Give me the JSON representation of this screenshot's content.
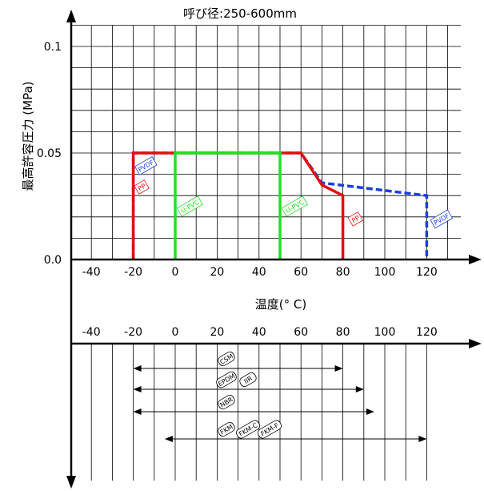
{
  "chart_data": [
    {
      "type": "line",
      "title": "呼び径:250-600mm",
      "xlabel": "温度(° C)",
      "ylabel": "最高許容圧力 (MPa)",
      "x_ticks": [
        -40,
        -20,
        0,
        20,
        40,
        60,
        80,
        100,
        120
      ],
      "y_ticks": [
        {
          "value": 0.1,
          "label": "0.1"
        },
        {
          "value": 0.05,
          "label": "0.05"
        },
        {
          "value": 0.0,
          "label": "0.0"
        }
      ],
      "xlim": [
        -50,
        130
      ],
      "ylim": [
        0,
        0.11
      ],
      "grid": true,
      "series": [
        {
          "name": "PVDF",
          "color": "#1a3fe0",
          "dash": "dashed",
          "x": [
            -20,
            -20,
            60,
            70,
            120,
            120
          ],
          "y": [
            0.0,
            0.05,
            0.05,
            0.036,
            0.03,
            0.0
          ]
        },
        {
          "name": "PP",
          "color": "#e01010",
          "dash": "solid",
          "x": [
            -20,
            -20,
            60,
            70,
            80,
            80
          ],
          "y": [
            0.0,
            0.05,
            0.05,
            0.035,
            0.03,
            0.0
          ]
        },
        {
          "name": "U-PVC",
          "color": "#22e022",
          "dash": "solid",
          "x": [
            0,
            0,
            50,
            50
          ],
          "y": [
            0.0,
            0.05,
            0.05,
            0.0
          ]
        }
      ],
      "tags": [
        {
          "text": "PVDF",
          "x": -14,
          "y": 0.044,
          "color": "#1a3fe0"
        },
        {
          "text": "PP",
          "x": -16,
          "y": 0.034,
          "color": "#e01010"
        },
        {
          "text": "U-PVC",
          "x": 7,
          "y": 0.025,
          "color": "#22e022"
        },
        {
          "text": "U-PVC",
          "x": 57,
          "y": 0.025,
          "color": "#22e022"
        },
        {
          "text": "PP",
          "x": 86,
          "y": 0.019,
          "color": "#e01010"
        },
        {
          "text": "PVDF",
          "x": 127,
          "y": 0.019,
          "color": "#1a3fe0"
        }
      ]
    },
    {
      "type": "range",
      "x_ticks": [
        -40,
        -20,
        0,
        20,
        40,
        60,
        80,
        100,
        120
      ],
      "xlim": [
        -50,
        130
      ],
      "ranges": [
        {
          "from": -20,
          "to": 80,
          "labels": [
            "CSM"
          ]
        },
        {
          "from": -20,
          "to": 90,
          "labels": [
            "EPDM",
            "IIR"
          ]
        },
        {
          "from": -20,
          "to": 95,
          "labels": [
            "NBR"
          ]
        },
        {
          "from": -5,
          "to": 120,
          "labels": [
            "FKM",
            "FKM-C",
            "FKM-F"
          ]
        }
      ]
    }
  ]
}
